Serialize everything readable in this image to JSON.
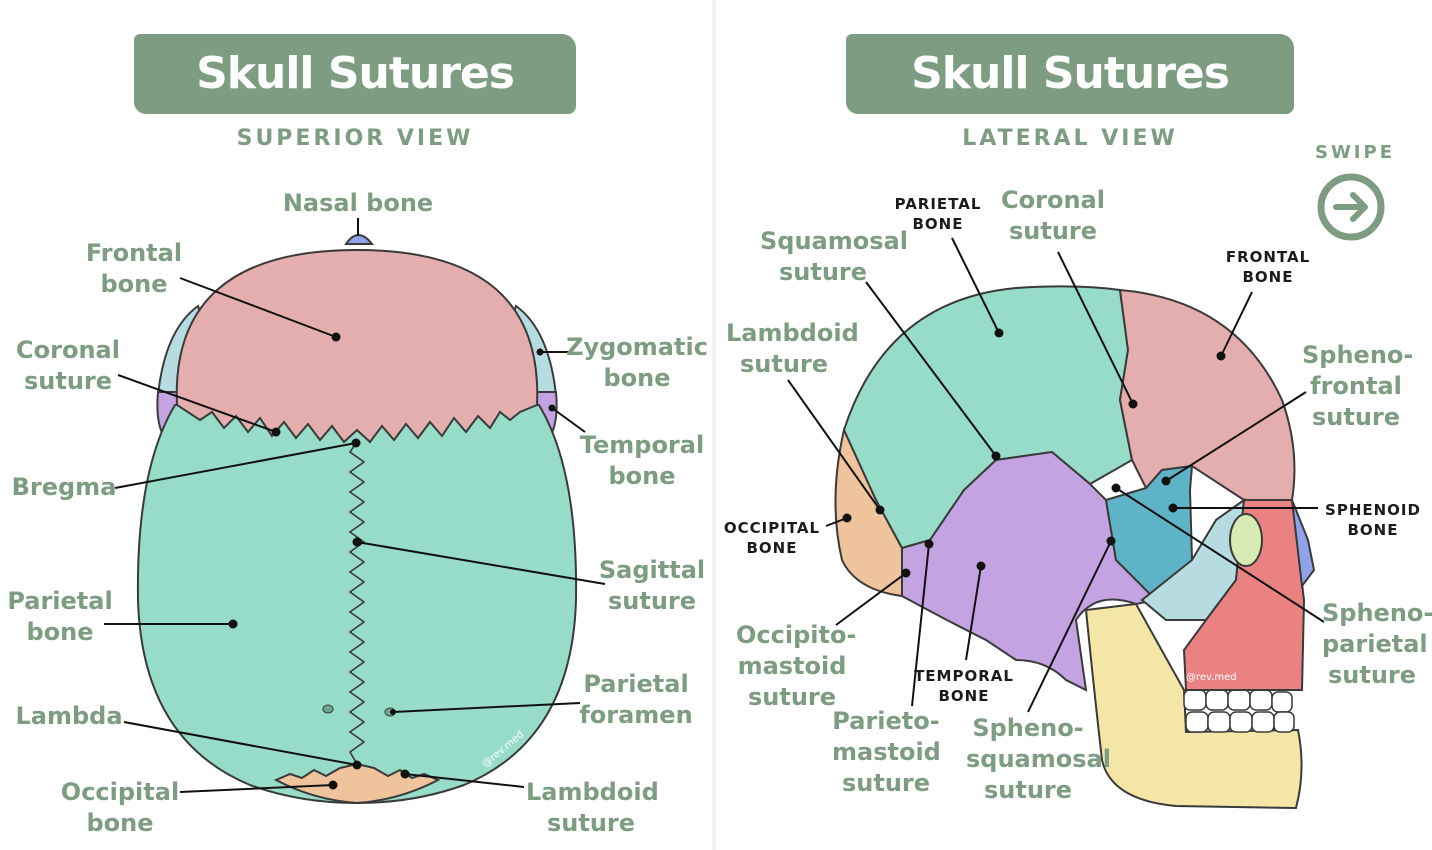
{
  "superior": {
    "title": "Skull Sutures",
    "view": "SUPERIOR VIEW",
    "labels": {
      "nasal_bone": "Nasal bone",
      "frontal_bone": "Frontal\nbone",
      "coronal_suture": "Coronal\nsuture",
      "zygomatic_bone": "Zygomatic\nbone",
      "temporal_bone": "Temporal\nbone",
      "bregma": "Bregma",
      "sagittal_suture": "Sagittal\nsuture",
      "parietal_bone": "Parietal\nbone",
      "parietal_foramen": "Parietal\nforamen",
      "lambda": "Lambda",
      "occipital_bone": "Occipital\nbone",
      "lambdoid_suture": "Lambdoid\nsuture"
    },
    "credit": "@rev.med"
  },
  "lateral": {
    "title": "Skull Sutures",
    "view": "LATERAL VIEW",
    "swipe": "SWIPE",
    "swipe_icon": "arrow-right-circle-icon",
    "labels": {
      "parietal_bone": "PARIETAL\nBONE",
      "coronal_suture": "Coronal\nsuture",
      "squamosal_suture": "Squamosal\nsuture",
      "frontal_bone": "FRONTAL\nBONE",
      "lambdoid_suture": "Lambdoid\nsuture",
      "sphenofrontal_suture": "Spheno-\nfrontal\nsuture",
      "sphenoid_bone": "SPHENOID\nBONE",
      "occipital_bone": "OCCIPITAL\nBONE",
      "occipitomastoid_suture": "Occipito-\nmastoid\nsuture",
      "sphenoparietal_suture": "Spheno-\nparietal\nsuture",
      "temporal_bone": "TEMPORAL\nBONE",
      "parietomastoid_suture": "Parieto-\nmastoid\nsuture",
      "sphenosquamosal_suture": "Spheno-\nsquamosal\nsuture"
    },
    "credit": "@rev.med"
  },
  "colors": {
    "accent": "#7d9c82",
    "parietal": "#96dcc8",
    "frontal": "#e4aeae",
    "occipital": "#efc39c",
    "temporal": "#c3a3e2",
    "sphenoid": "#5fb3c6",
    "zygomatic": "#b6dce2",
    "maxilla": "#ea8282",
    "mandible": "#f3e6a6",
    "nasal": "#8fa3e8",
    "ethmoid": "#d6ecb4"
  }
}
